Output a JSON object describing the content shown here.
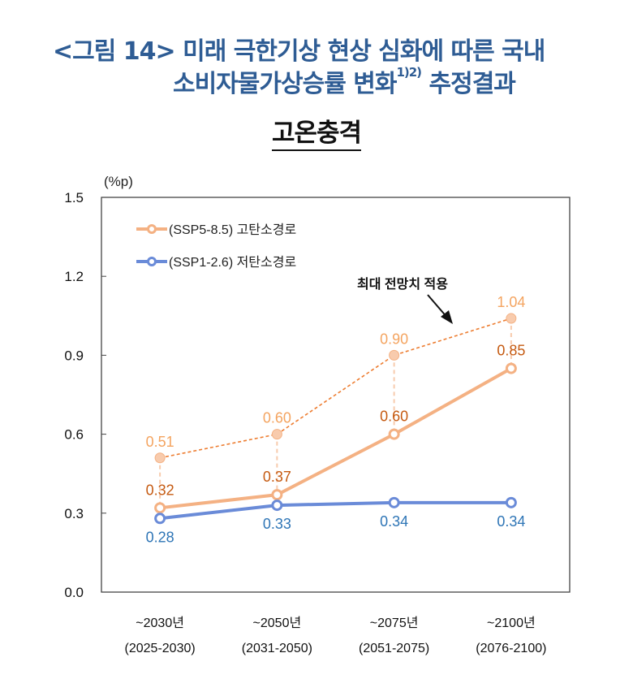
{
  "title_line1": "<그림 14> 미래 극한기상 현상 심화에 따른 국내",
  "title_line2": "소비자물가상승률 변화",
  "title_sup": "1)2)",
  "title_line2_end": "추정결과",
  "subtitle": "고온충격",
  "chart_data": {
    "type": "line",
    "ylabel": "(%p)",
    "ylim": [
      0,
      1.5
    ],
    "yticks": [
      "0.0",
      "0.3",
      "0.6",
      "0.9",
      "1.2",
      "1.5"
    ],
    "categories": [
      "~2030년",
      "~2050년",
      "~2075년",
      "~2100년"
    ],
    "category_sublabels": [
      "(2025-2030)",
      "(2031-2050)",
      "(2051-2075)",
      "(2076-2100)"
    ],
    "grid": false,
    "legend_position": "top-left",
    "series": [
      {
        "name": "(SSP5-8.5) 고탄소경로",
        "values": [
          0.32,
          0.37,
          0.6,
          0.85
        ],
        "labels": [
          "0.32",
          "0.37",
          "0.60",
          "0.85"
        ],
        "color": "#F4B183",
        "label_color": "#C55A11"
      },
      {
        "name": "(SSP1-2.6) 저탄소경로",
        "values": [
          0.28,
          0.33,
          0.34,
          0.34
        ],
        "labels": [
          "0.28",
          "0.33",
          "0.34",
          "0.34"
        ],
        "color": "#6A8BD8",
        "label_color": "#2E75B6"
      }
    ],
    "max_projection": {
      "values": [
        0.51,
        0.6,
        0.9,
        1.04
      ],
      "labels": [
        "0.51",
        "0.60",
        "0.90",
        "1.04"
      ],
      "color": "#F4B183",
      "line_color": "#ED7D31",
      "label_color": "#F4A460",
      "style": "dashed"
    },
    "annotation": "최대 전망치 적용"
  }
}
